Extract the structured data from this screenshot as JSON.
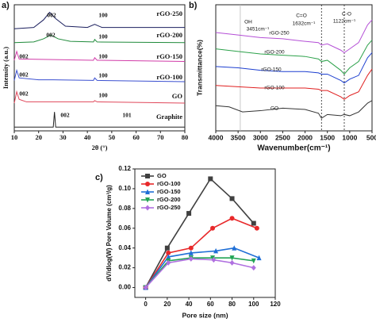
{
  "chart_data": [
    {
      "type": "line",
      "panel_label": "a)",
      "x_label": "2θ (°)",
      "y_label": "Intensity (a.u.)",
      "xlim": [
        10,
        80
      ],
      "ylim": [
        0,
        100
      ],
      "xticks": [
        10,
        20,
        30,
        40,
        50,
        60,
        70,
        80
      ],
      "series": [
        {
          "name": "rGO-250",
          "color": "#1b1f5e",
          "labels": [
            "002",
            "100"
          ],
          "x": [
            10,
            18,
            22,
            24.5,
            27,
            31,
            40,
            43,
            46,
            80
          ],
          "values": [
            81,
            82,
            88,
            94,
            89,
            83,
            82,
            84.5,
            82,
            82
          ]
        },
        {
          "name": "rGO-200",
          "color": "#1f8a3a",
          "labels": [
            "002",
            "100"
          ],
          "x": [
            10,
            18,
            22,
            25,
            28,
            33,
            42.5,
            43,
            44,
            80
          ],
          "values": [
            70,
            70.5,
            73,
            76,
            73,
            71,
            70.5,
            72.5,
            70.5,
            70
          ]
        },
        {
          "name": "rGO-150",
          "color": "#d13ca8",
          "labels": [
            "002",
            "100"
          ],
          "x": [
            10,
            11,
            12,
            42.5,
            43,
            44,
            80
          ],
          "values": [
            56,
            63,
            57,
            56,
            58,
            56,
            55
          ]
        },
        {
          "name": "rGO-100",
          "color": "#3a4fd0",
          "labels": [
            "002",
            "100"
          ],
          "x": [
            10,
            11,
            12,
            20,
            26,
            42.5,
            43,
            44,
            80
          ],
          "values": [
            40,
            48,
            42,
            40.5,
            40.5,
            40,
            42,
            40,
            39
          ]
        },
        {
          "name": "GO",
          "color": "#e0475a",
          "labels": [
            "002",
            "100"
          ],
          "x": [
            10,
            11,
            12,
            15,
            42.5,
            43,
            44,
            80
          ],
          "values": [
            22,
            31,
            25,
            23,
            23,
            24,
            23,
            22
          ]
        },
        {
          "name": "Graphite",
          "color": "#222222",
          "labels": [
            "002",
            "101"
          ],
          "x": [
            10,
            26,
            26.5,
            27,
            80
          ],
          "values": [
            3,
            3,
            15,
            3,
            3
          ]
        }
      ]
    },
    {
      "type": "line",
      "panel_label": "b)",
      "x_label": "Wavenumber(cm⁻¹)",
      "y_label": "Transmittance(%)",
      "xlim": [
        4000,
        500
      ],
      "ylim": [
        0,
        100
      ],
      "xticks": [
        4000,
        3500,
        3000,
        2500,
        2000,
        1500,
        1000,
        500
      ],
      "annotations": [
        "OH",
        "3451cm⁻¹",
        "C=O",
        "1632cm⁻¹",
        "C-O",
        "1122cm⁻¹"
      ],
      "reference_lines": [
        3451,
        1632,
        1122
      ],
      "series": [
        {
          "name": "rGO-250",
          "color": "#b44fd6",
          "x": [
            4000,
            3500,
            3000,
            2500,
            2000,
            1700,
            1632,
            1500,
            1200,
            1122,
            1000,
            800,
            600,
            500
          ],
          "values": [
            78,
            76,
            74,
            73,
            71,
            70,
            68,
            69,
            64,
            62,
            65,
            70,
            84,
            88
          ]
        },
        {
          "name": "rGO-200",
          "color": "#2ca14a",
          "x": [
            4000,
            3500,
            3000,
            2500,
            2000,
            1700,
            1632,
            1500,
            1200,
            1122,
            1000,
            800,
            600,
            500
          ],
          "values": [
            65,
            63,
            61,
            60,
            59,
            57,
            55,
            56,
            48,
            45,
            50,
            55,
            68,
            72
          ]
        },
        {
          "name": "rGO-150",
          "color": "#1d3fd0",
          "x": [
            4000,
            3500,
            3000,
            2500,
            2000,
            1700,
            1632,
            1500,
            1200,
            1122,
            1000,
            800,
            600,
            500
          ],
          "values": [
            51,
            50,
            48,
            47,
            47,
            46,
            45,
            45,
            40,
            38,
            41,
            44,
            58,
            62
          ]
        },
        {
          "name": "rGO-100",
          "color": "#e02020",
          "x": [
            4000,
            3500,
            3000,
            2500,
            2000,
            1700,
            1632,
            1500,
            1200,
            1122,
            1000,
            800,
            600,
            500
          ],
          "values": [
            36,
            35,
            34,
            34,
            34,
            33,
            32,
            32,
            27,
            25,
            28,
            31,
            44,
            49
          ]
        },
        {
          "name": "GO",
          "color": "#333333",
          "x": [
            4000,
            3700,
            3400,
            3000,
            2500,
            2000,
            1700,
            1632,
            1500,
            1200,
            1122,
            1000,
            800,
            600,
            500
          ],
          "values": [
            20,
            19,
            15,
            16,
            18,
            17,
            14,
            10,
            13,
            12,
            13,
            12,
            15,
            22,
            24
          ]
        }
      ]
    },
    {
      "type": "line",
      "panel_label": "c)",
      "x_label": "Pore size (nm)",
      "y_label": "dV/dlog(W) Pore Volume (cm³/g)",
      "xlim": [
        -10,
        120
      ],
      "ylim": [
        -0.01,
        0.12
      ],
      "xticks": [
        0,
        20,
        40,
        60,
        80,
        100,
        120
      ],
      "yticks": [
        {
          "value": 0,
          "label": "0.00"
        },
        {
          "value": 0.02,
          "label": "0.02"
        },
        {
          "value": 0.04,
          "label": "0.04"
        },
        {
          "value": 0.06,
          "label": "0.06"
        },
        {
          "value": 0.08,
          "label": "0.08"
        },
        {
          "value": 0.1,
          "label": "0.10"
        },
        {
          "value": 0.12,
          "label": "0.12"
        }
      ],
      "legend": "top-left",
      "series": [
        {
          "name": "GO",
          "color": "#404040",
          "marker": "square",
          "x": [
            0,
            20,
            40,
            60,
            80,
            100
          ],
          "values": [
            0,
            0.04,
            0.075,
            0.11,
            0.09,
            0.065
          ]
        },
        {
          "name": "rGO-100",
          "color": "#e8282a",
          "marker": "circle",
          "x": [
            0,
            21,
            42,
            62,
            80,
            103
          ],
          "values": [
            0,
            0.035,
            0.04,
            0.06,
            0.07,
            0.06
          ]
        },
        {
          "name": "rGO-150",
          "color": "#1f6fd6",
          "marker": "triangle-up",
          "x": [
            0,
            21,
            42,
            65,
            82,
            105
          ],
          "values": [
            0,
            0.031,
            0.035,
            0.037,
            0.04,
            0.03
          ]
        },
        {
          "name": "rGO-200",
          "color": "#22a455",
          "marker": "triangle-down",
          "x": [
            0,
            21,
            42,
            62,
            80,
            100
          ],
          "values": [
            0,
            0.027,
            0.03,
            0.03,
            0.03,
            0.027
          ]
        },
        {
          "name": "rGO-250",
          "color": "#b070e0",
          "marker": "diamond",
          "x": [
            0,
            21,
            42,
            63,
            80,
            100
          ],
          "values": [
            0,
            0.025,
            0.029,
            0.028,
            0.025,
            0.02
          ]
        }
      ]
    }
  ]
}
